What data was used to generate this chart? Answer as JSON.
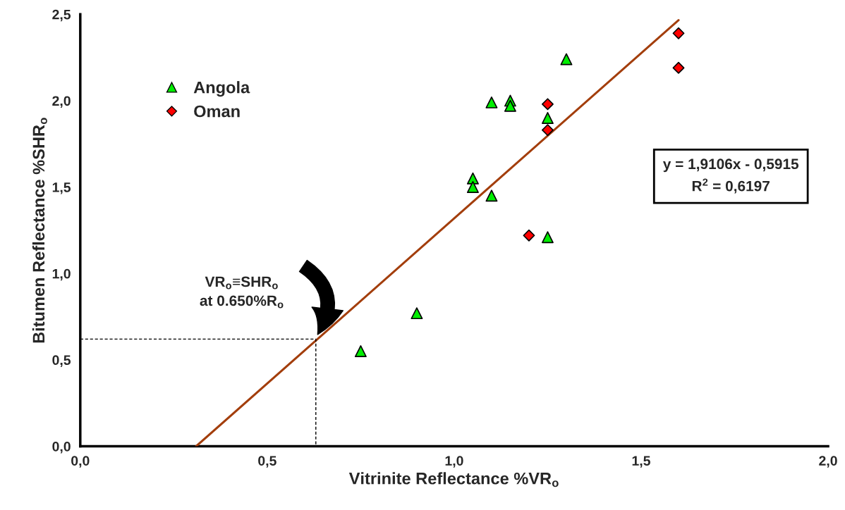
{
  "chart_data": {
    "type": "scatter",
    "xlabel": "Vitrinite Reflectance %VR$_{o}$",
    "ylabel": "Bitumen Reflectance %SHR$_{o}$",
    "xlim": [
      0,
      2
    ],
    "ylim": [
      0,
      2.5
    ],
    "xticks": [
      {
        "value": 0,
        "label": "0,0"
      },
      {
        "value": 0.5,
        "label": "0,5"
      },
      {
        "value": 1,
        "label": "1,0"
      },
      {
        "value": 1.5,
        "label": "1,5"
      },
      {
        "value": 2,
        "label": "2,0"
      }
    ],
    "yticks": [
      {
        "value": 0,
        "label": "0,0"
      },
      {
        "value": 0.5,
        "label": "0,5"
      },
      {
        "value": 1,
        "label": "1,0"
      },
      {
        "value": 1.5,
        "label": "1,5"
      },
      {
        "value": 2,
        "label": "2,0"
      },
      {
        "value": 2.5,
        "label": "2,5"
      }
    ],
    "grid": false,
    "legend": "top left",
    "series": [
      {
        "name": "Angola",
        "marker": "triangle",
        "color": "#00ee00",
        "x": [
          0.75,
          0.9,
          1.05,
          1.05,
          1.1,
          1.1,
          1.15,
          1.15,
          1.25,
          1.25,
          1.3
        ],
        "values": [
          0.55,
          0.77,
          1.55,
          1.5,
          1.45,
          1.99,
          2.0,
          1.97,
          1.9,
          1.21,
          2.24
        ]
      },
      {
        "name": "Oman",
        "marker": "diamond",
        "color": "#ff0000",
        "x": [
          1.2,
          1.25,
          1.25,
          1.6,
          1.6
        ],
        "values": [
          1.22,
          1.98,
          1.83,
          2.39,
          2.19
        ]
      },
      {
        "type": "line",
        "color": "#a33e0c",
        "line_style": "solid",
        "x": [
          0.31,
          1.6
        ],
        "values": [
          0,
          2.466
        ]
      },
      {
        "type": "line",
        "color": "#000000",
        "line_style": "dashed",
        "x": [
          0,
          0.63,
          0.63
        ],
        "values": [
          0.62,
          0.62,
          0
        ]
      }
    ],
    "annotations": [
      "VR$_{o}$≡SHR$_{o}$\nat 0.650%R$_{o}$",
      "y = 1,9106x - 0,5915\nR$^{2}$ = 0,6197"
    ]
  }
}
